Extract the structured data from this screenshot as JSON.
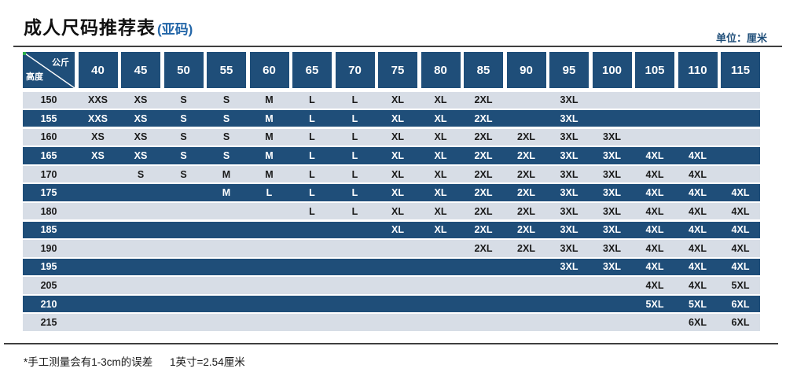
{
  "page": {
    "title": "成人尺码推荐表",
    "title_suffix": "(亚码)",
    "unit_label": "单位：厘米",
    "footnote_measure": "*手工测量会有1-3cm的误差",
    "footnote_conversion": "1英寸=2.54厘米"
  },
  "colors": {
    "header_navy": "#1F4E79",
    "row_light": "#D7DDE6",
    "title_suffix_blue": "#2366A8",
    "rule_gray": "#3f3f3f",
    "corner_marker_green": "#2EAE4E",
    "text_dark": "#1a1a1a",
    "text_light": "#ffffff"
  },
  "chart_data": {
    "type": "table",
    "title": "成人尺码推荐表(亚码)",
    "unit": "厘米",
    "corner_top_right_label": "公斤",
    "corner_bottom_left_label": "高度",
    "columns": [
      "40",
      "45",
      "50",
      "55",
      "60",
      "65",
      "70",
      "75",
      "80",
      "85",
      "90",
      "95",
      "100",
      "105",
      "110",
      "115"
    ],
    "rows": [
      {
        "height": "150",
        "sizes": [
          "XXS",
          "XS",
          "S",
          "S",
          "M",
          "L",
          "L",
          "XL",
          "XL",
          "2XL",
          "",
          "3XL",
          "",
          "",
          "",
          ""
        ]
      },
      {
        "height": "155",
        "sizes": [
          "XXS",
          "XS",
          "S",
          "S",
          "M",
          "L",
          "L",
          "XL",
          "XL",
          "2XL",
          "",
          "3XL",
          "",
          "",
          "",
          ""
        ]
      },
      {
        "height": "160",
        "sizes": [
          "XS",
          "XS",
          "S",
          "S",
          "M",
          "L",
          "L",
          "XL",
          "XL",
          "2XL",
          "2XL",
          "3XL",
          "3XL",
          "",
          "",
          ""
        ]
      },
      {
        "height": "165",
        "sizes": [
          "XS",
          "XS",
          "S",
          "S",
          "M",
          "L",
          "L",
          "XL",
          "XL",
          "2XL",
          "2XL",
          "3XL",
          "3XL",
          "4XL",
          "4XL",
          ""
        ]
      },
      {
        "height": "170",
        "sizes": [
          "",
          "S",
          "S",
          "M",
          "M",
          "L",
          "L",
          "XL",
          "XL",
          "2XL",
          "2XL",
          "3XL",
          "3XL",
          "4XL",
          "4XL",
          ""
        ]
      },
      {
        "height": "175",
        "sizes": [
          "",
          "",
          "",
          "M",
          "L",
          "L",
          "L",
          "XL",
          "XL",
          "2XL",
          "2XL",
          "3XL",
          "3XL",
          "4XL",
          "4XL",
          "4XL"
        ]
      },
      {
        "height": "180",
        "sizes": [
          "",
          "",
          "",
          "",
          "",
          "L",
          "L",
          "XL",
          "XL",
          "2XL",
          "2XL",
          "3XL",
          "3XL",
          "4XL",
          "4XL",
          "4XL"
        ]
      },
      {
        "height": "185",
        "sizes": [
          "",
          "",
          "",
          "",
          "",
          "",
          "",
          "XL",
          "XL",
          "2XL",
          "2XL",
          "3XL",
          "3XL",
          "4XL",
          "4XL",
          "4XL"
        ]
      },
      {
        "height": "190",
        "sizes": [
          "",
          "",
          "",
          "",
          "",
          "",
          "",
          "",
          "",
          "2XL",
          "2XL",
          "3XL",
          "3XL",
          "4XL",
          "4XL",
          "4XL"
        ]
      },
      {
        "height": "195",
        "sizes": [
          "",
          "",
          "",
          "",
          "",
          "",
          "",
          "",
          "",
          "",
          "",
          "3XL",
          "3XL",
          "4XL",
          "4XL",
          "4XL"
        ]
      },
      {
        "height": "205",
        "sizes": [
          "",
          "",
          "",
          "",
          "",
          "",
          "",
          "",
          "",
          "",
          "",
          "",
          "",
          "4XL",
          "4XL",
          "5XL"
        ]
      },
      {
        "height": "210",
        "sizes": [
          "",
          "",
          "",
          "",
          "",
          "",
          "",
          "",
          "",
          "",
          "",
          "",
          "",
          "5XL",
          "5XL",
          "6XL"
        ]
      },
      {
        "height": "215",
        "sizes": [
          "",
          "",
          "",
          "",
          "",
          "",
          "",
          "",
          "",
          "",
          "",
          "",
          "",
          "",
          "6XL",
          "6XL"
        ]
      }
    ]
  }
}
